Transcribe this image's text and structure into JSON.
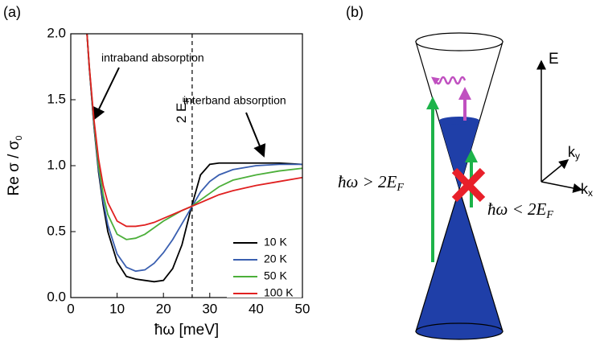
{
  "chart_data": {
    "type": "line",
    "panel_label": "(a)",
    "x_label": "ħω [meV]",
    "y_label": {
      "main": "Re σ / σ",
      "sub": "0"
    },
    "xlim": [
      0,
      50
    ],
    "ylim": [
      0,
      2
    ],
    "xticks": [
      0,
      10,
      20,
      30,
      40,
      50
    ],
    "yticks": [
      {
        "value": 0,
        "label": "0.0"
      },
      0.5,
      {
        "value": 1,
        "label": "1.0"
      },
      1.5,
      {
        "value": 2,
        "label": "2.0"
      }
    ],
    "x": [
      3.5,
      4,
      5,
      6,
      7,
      8,
      10,
      12,
      14,
      16,
      18,
      20,
      22,
      24,
      26,
      28,
      30,
      32,
      35,
      40,
      45,
      50
    ],
    "series": [
      {
        "name": "10 K",
        "color": "#000000",
        "values": [
          2.0,
          1.74,
          1.3,
          0.95,
          0.7,
          0.5,
          0.27,
          0.16,
          0.14,
          0.13,
          0.12,
          0.13,
          0.22,
          0.4,
          0.68,
          0.93,
          1.01,
          1.02,
          1.02,
          1.02,
          1.02,
          1.01
        ]
      },
      {
        "name": "20 K",
        "color": "#3a5fb0",
        "values": [
          2.0,
          1.74,
          1.31,
          0.97,
          0.73,
          0.55,
          0.33,
          0.23,
          0.2,
          0.21,
          0.26,
          0.34,
          0.44,
          0.56,
          0.68,
          0.8,
          0.88,
          0.93,
          0.97,
          1.0,
          1.01,
          1.01
        ]
      },
      {
        "name": "50 K",
        "color": "#4caf3a",
        "values": [
          2.0,
          1.75,
          1.33,
          1.0,
          0.78,
          0.63,
          0.48,
          0.44,
          0.45,
          0.48,
          0.53,
          0.58,
          0.62,
          0.66,
          0.69,
          0.74,
          0.79,
          0.84,
          0.89,
          0.93,
          0.96,
          0.98
        ]
      },
      {
        "name": "100 K",
        "color": "#e02020",
        "values": [
          2.0,
          1.75,
          1.35,
          1.05,
          0.85,
          0.72,
          0.58,
          0.54,
          0.54,
          0.55,
          0.57,
          0.6,
          0.63,
          0.66,
          0.69,
          0.72,
          0.75,
          0.78,
          0.81,
          0.85,
          0.88,
          0.91
        ]
      }
    ],
    "vline": {
      "x": 26.2,
      "label": {
        "main": "2 E",
        "sub": "F"
      }
    },
    "annotations": [
      "intraband absorption",
      "interband absorption"
    ]
  },
  "diagram": {
    "panel_label": "(b)",
    "axes": {
      "e": "E",
      "ky": {
        "main": "k",
        "sub": "y"
      },
      "kx": {
        "main": "k",
        "sub": "x"
      }
    },
    "transitions": [
      {
        "main": "ħω > 2E",
        "sub": "F"
      },
      {
        "main": "ħω < 2E",
        "sub": "F"
      }
    ]
  }
}
